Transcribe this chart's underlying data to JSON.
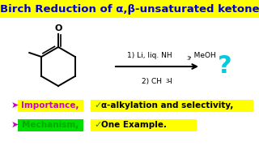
{
  "title": "Birch Reduction of α,β-unsaturated ketone",
  "title_bg": "#FFFF00",
  "title_color": "#0000CD",
  "title_fontsize": 9.5,
  "bg_color": "#FFFFFF",
  "highlight_yellow": "#FFFF00",
  "highlight_green": "#00DD00",
  "check_color": "#228B22",
  "question_color": "#00CCDD",
  "arrow_color": "#000000",
  "bullet_magenta": "#CC00CC",
  "bullet_green": "#00AA00",
  "items_right": [
    {
      "symbol": "✓",
      "text": "α-alkylation and selectivity,",
      "bg": "#FFFF00"
    },
    {
      "symbol": "✓",
      "text": "One Example.",
      "bg": "#FFFF00"
    }
  ],
  "bullets_left": [
    {
      "symbol": "➤",
      "text": "Importance,",
      "bg": "#FFFF00",
      "text_color": "#CC00CC"
    },
    {
      "symbol": "➤",
      "text": "Mechanism,",
      "bg": "#00DD00",
      "text_color": "#00AA00"
    }
  ]
}
